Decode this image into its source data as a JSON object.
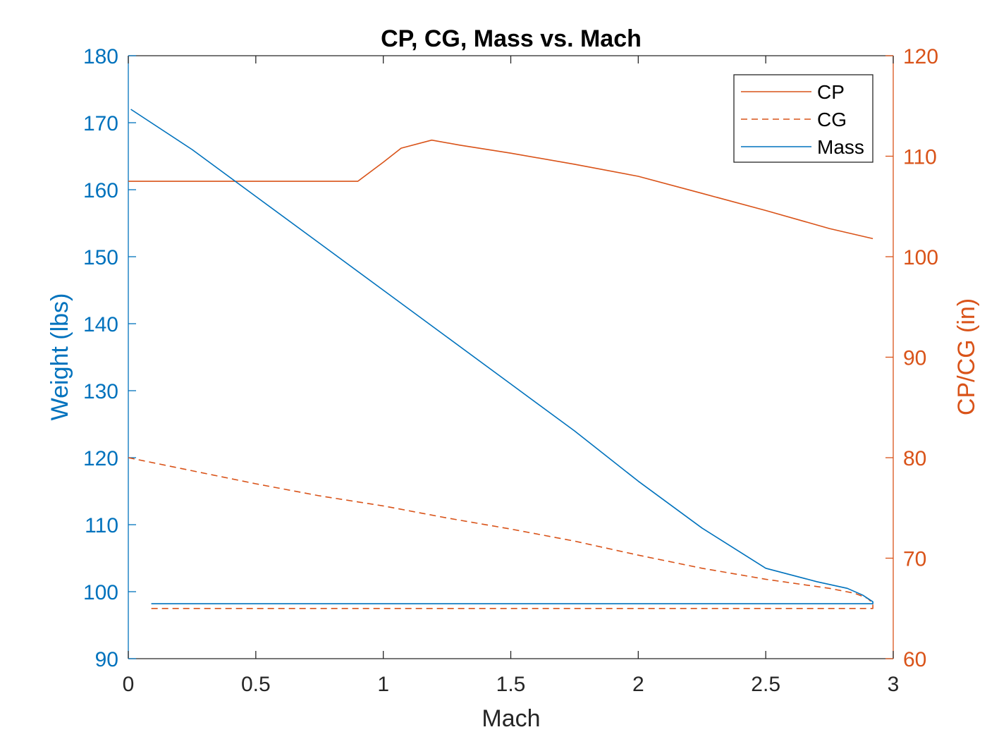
{
  "chart_data": {
    "type": "line",
    "title": "CP, CG, Mass vs. Mach",
    "xlabel": "Mach",
    "ylabel_left": "Weight (lbs)",
    "ylabel_right": "CP/CG (in)",
    "xlim": [
      0,
      3
    ],
    "ylim_left": [
      90,
      180
    ],
    "ylim_right": [
      60,
      120
    ],
    "x_ticks": [
      "0",
      "0.5",
      "1",
      "1.5",
      "2",
      "2.5",
      "3"
    ],
    "y_left_ticks": [
      "90",
      "100",
      "110",
      "120",
      "130",
      "140",
      "150",
      "160",
      "170",
      "180"
    ],
    "y_right_ticks": [
      "60",
      "70",
      "80",
      "90",
      "100",
      "110",
      "120"
    ],
    "grid": false,
    "legend_position": "top-right",
    "legend": [
      {
        "label": "CP",
        "style": "solid",
        "color": "#D95319"
      },
      {
        "label": "CG",
        "style": "dashed",
        "color": "#D95319"
      },
      {
        "label": "Mass",
        "style": "solid",
        "color": "#0072BD"
      }
    ],
    "colors": {
      "left_axis": "#0072BD",
      "right_axis": "#D95319",
      "box_axis": "#262626"
    },
    "series": [
      {
        "name": "CP",
        "axis": "right",
        "style": "solid",
        "color": "#D95319",
        "x": [
          0,
          0.5,
          0.9,
          1.0,
          1.07,
          1.19,
          1.3,
          1.5,
          1.75,
          2.0,
          2.25,
          2.5,
          2.75,
          2.92
        ],
        "y": [
          107.5,
          107.5,
          107.5,
          109.4,
          110.8,
          111.6,
          111.1,
          110.3,
          109.2,
          108.0,
          106.3,
          104.6,
          102.8,
          101.8
        ]
      },
      {
        "name": "CG",
        "axis": "right",
        "style": "dashed",
        "color": "#D95319",
        "x": [
          0,
          0.25,
          0.5,
          0.75,
          1.0,
          1.25,
          1.5,
          1.75,
          2.0,
          2.25,
          2.5,
          2.75,
          2.85,
          2.9,
          2.92,
          2.92,
          2.5,
          2.0,
          1.5,
          1.0,
          0.5,
          0.09
        ],
        "y": [
          80.0,
          78.7,
          77.4,
          76.2,
          75.2,
          74.0,
          72.9,
          71.7,
          70.3,
          69.0,
          67.9,
          67.0,
          66.5,
          66.0,
          65.5,
          65.0,
          65.0,
          65.0,
          65.0,
          65.0,
          65.0,
          65.0
        ]
      },
      {
        "name": "Mass",
        "axis": "left",
        "style": "solid",
        "color": "#0072BD",
        "x": [
          0.01,
          0.25,
          0.5,
          0.75,
          1.0,
          1.25,
          1.5,
          1.75,
          2.0,
          2.25,
          2.5,
          2.7,
          2.82,
          2.88,
          2.92,
          2.92,
          2.5,
          2.0,
          1.5,
          1.0,
          0.5,
          0.09
        ],
        "y": [
          172.0,
          166.0,
          159.0,
          152.0,
          145.0,
          138.0,
          131.0,
          124.0,
          116.5,
          109.5,
          103.5,
          101.5,
          100.5,
          99.5,
          98.5,
          98.2,
          98.2,
          98.2,
          98.2,
          98.2,
          98.2,
          98.2
        ]
      }
    ]
  }
}
